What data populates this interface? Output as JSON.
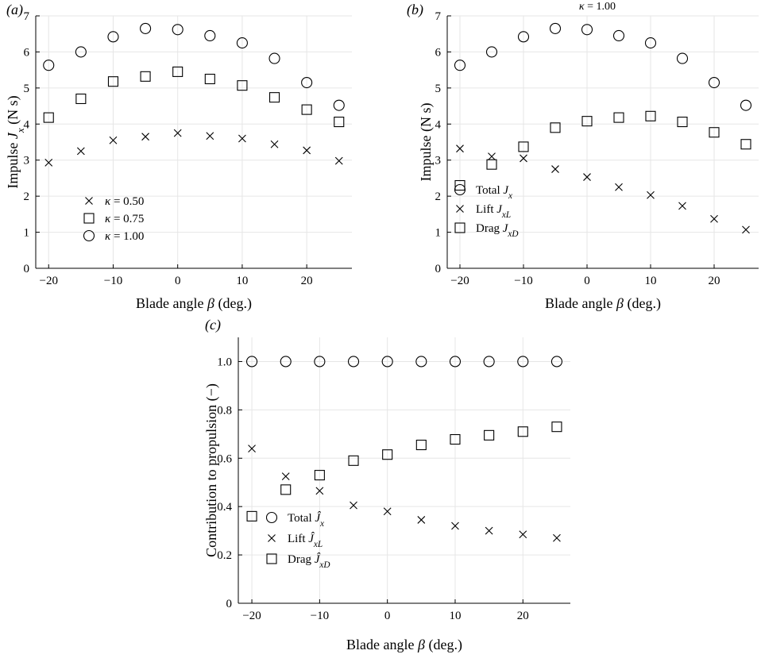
{
  "chart_data": [
    {
      "panel": "(a)",
      "type": "scatter",
      "ylabel": "Impulse J_x (N s)",
      "xlabel": "Blade angle β (deg.)",
      "xlim": [
        -22,
        27
      ],
      "ylim": [
        0,
        7
      ],
      "xticks": [
        -20,
        -10,
        0,
        10,
        20
      ],
      "yticks": [
        0,
        1,
        2,
        3,
        4,
        5,
        6,
        7
      ],
      "grid": true,
      "legend_position": "lower-left",
      "x": [
        -20,
        -15,
        -10,
        -5,
        0,
        5,
        10,
        15,
        20,
        25
      ],
      "series": [
        {
          "name": "κ = 0.50",
          "marker": "cross",
          "values": [
            2.93,
            3.25,
            3.55,
            3.65,
            3.75,
            3.67,
            3.6,
            3.44,
            3.27,
            2.98
          ]
        },
        {
          "name": "κ = 0.75",
          "marker": "square",
          "values": [
            4.18,
            4.7,
            5.18,
            5.32,
            5.45,
            5.25,
            5.07,
            4.74,
            4.4,
            4.06
          ]
        },
        {
          "name": "κ = 1.00",
          "marker": "circle",
          "values": [
            5.63,
            6.0,
            6.42,
            6.65,
            6.62,
            6.45,
            6.25,
            5.82,
            5.15,
            4.52
          ]
        }
      ]
    },
    {
      "panel": "(b)",
      "type": "scatter",
      "annotation": "κ = 1.00",
      "ylabel": "Impulse (N s)",
      "xlabel": "Blade angle β (deg.)",
      "xlim": [
        -22,
        27
      ],
      "ylim": [
        0,
        7
      ],
      "xticks": [
        -20,
        -10,
        0,
        10,
        20
      ],
      "yticks": [
        0,
        1,
        2,
        3,
        4,
        5,
        6,
        7
      ],
      "grid": true,
      "legend_position": "lower-left",
      "x": [
        -20,
        -15,
        -10,
        -5,
        0,
        5,
        10,
        15,
        20,
        25
      ],
      "series": [
        {
          "name": "Total J_x",
          "marker": "circle",
          "values": [
            5.63,
            6.0,
            6.42,
            6.65,
            6.62,
            6.45,
            6.25,
            5.82,
            5.15,
            4.52
          ]
        },
        {
          "name": "Lift J_xL",
          "marker": "cross",
          "values": [
            3.32,
            3.1,
            3.05,
            2.75,
            2.53,
            2.25,
            2.03,
            1.73,
            1.37,
            1.07
          ]
        },
        {
          "name": "Drag J_xD",
          "marker": "square",
          "values": [
            2.3,
            2.88,
            3.37,
            3.9,
            4.08,
            4.18,
            4.22,
            4.06,
            3.77,
            3.44
          ]
        }
      ]
    },
    {
      "panel": "(c)",
      "type": "scatter",
      "ylabel": "Contribution to propulsion (−)",
      "xlabel": "Blade angle β (deg.)",
      "xlim": [
        -22,
        27
      ],
      "ylim": [
        0,
        1.1
      ],
      "xticks": [
        -20,
        -10,
        0,
        10,
        20
      ],
      "yticks": [
        0,
        0.2,
        0.4,
        0.6,
        0.8,
        1.0
      ],
      "ytick_labels": [
        "0",
        "0.2",
        "0.4",
        "0.6",
        "0.8",
        "1.0"
      ],
      "grid": true,
      "legend_position": "lower-left",
      "x": [
        -20,
        -15,
        -10,
        -5,
        0,
        5,
        10,
        15,
        20,
        25
      ],
      "series": [
        {
          "name": "Total Ĵ_x",
          "marker": "circle",
          "values": [
            1.0,
            1.0,
            1.0,
            1.0,
            1.0,
            1.0,
            1.0,
            1.0,
            1.0,
            1.0
          ]
        },
        {
          "name": "Lift Ĵ_xL",
          "marker": "cross",
          "values": [
            0.64,
            0.525,
            0.465,
            0.405,
            0.38,
            0.345,
            0.32,
            0.3,
            0.285,
            0.27
          ]
        },
        {
          "name": "Drag Ĵ_xD",
          "marker": "square",
          "values": [
            0.36,
            0.47,
            0.53,
            0.59,
            0.615,
            0.655,
            0.678,
            0.695,
            0.71,
            0.73
          ]
        }
      ]
    }
  ]
}
